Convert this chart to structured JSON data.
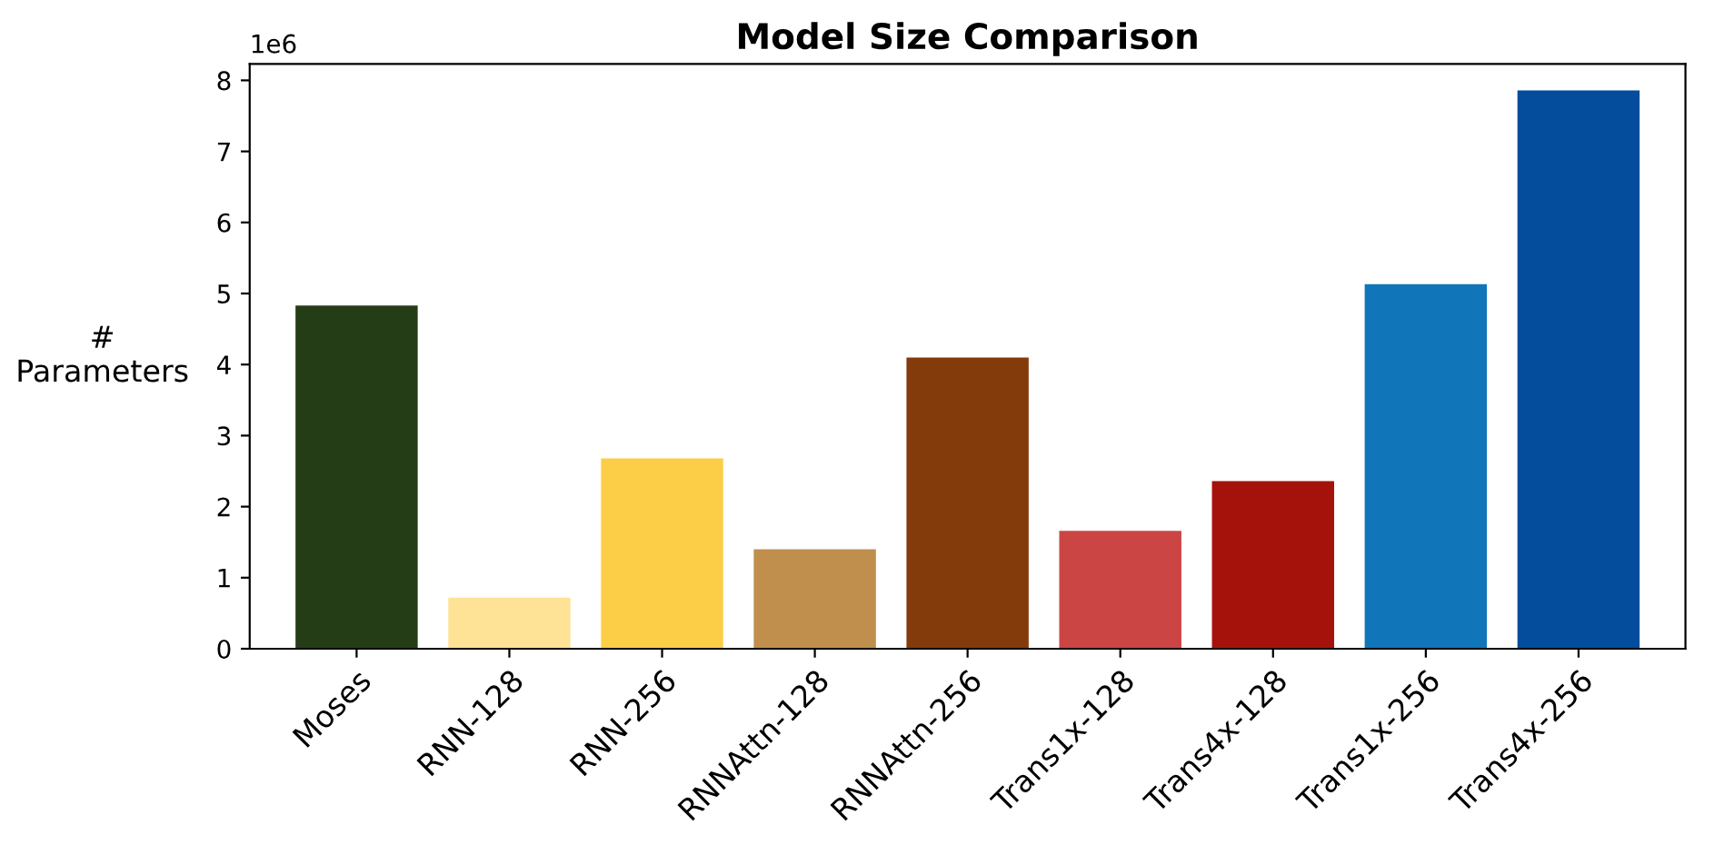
{
  "chart_data": {
    "type": "bar",
    "title": "Model Size Comparison",
    "ylabel": "#\nParameters",
    "categories": [
      "Moses",
      "RNN-128",
      "RNN-256",
      "RNNAttn-128",
      "RNNAttn-256",
      "Trans1x-128",
      "Trans4x-128",
      "Trans1x-256",
      "Trans4x-256"
    ],
    "values": [
      4.83,
      0.72,
      2.68,
      1.4,
      4.1,
      1.66,
      2.36,
      5.13,
      7.86
    ],
    "colors": [
      "#253d16",
      "#fee397",
      "#fcce47",
      "#c08f4e",
      "#843b0c",
      "#cc4545",
      "#a5120c",
      "#1075b9",
      "#034d9c"
    ],
    "ylim": [
      0,
      8.23
    ],
    "yticks": [
      0,
      1,
      2,
      3,
      4,
      5,
      6,
      7,
      8
    ],
    "annotations": [
      "1e6"
    ],
    "grid": false,
    "legend": false
  }
}
